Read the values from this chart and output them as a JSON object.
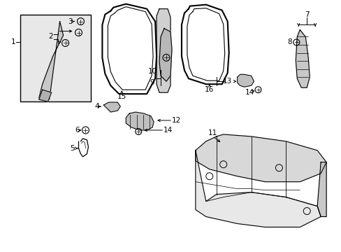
{
  "bg_color": "#ffffff",
  "line_color": "#000000",
  "gray_fill": "#e8e8e8",
  "figsize": [
    4.89,
    3.6
  ],
  "dpi": 100
}
